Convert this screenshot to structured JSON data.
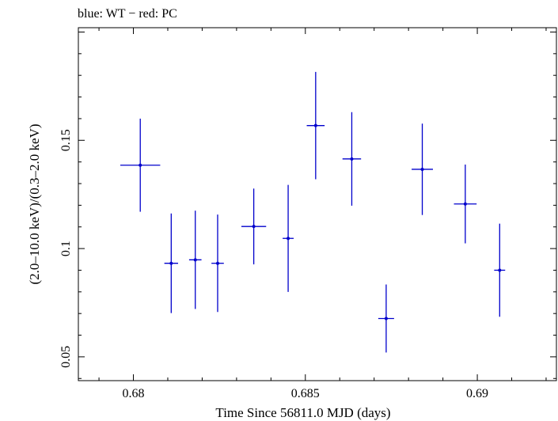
{
  "chart_data": {
    "type": "scatter",
    "title": "blue: WT − red: PC",
    "xlabel": "Time Since 56811.0 MJD (days)",
    "ylabel": "(2.0–10.0 keV)/(0.3–2.0 keV)",
    "xlim": [
      0.6784,
      0.6923
    ],
    "ylim": [
      0.039,
      0.202
    ],
    "x_ticks": [
      {
        "value": 0.68,
        "label": "0.68"
      },
      {
        "value": 0.685,
        "label": "0.685"
      },
      {
        "value": 0.69,
        "label": "0.69"
      }
    ],
    "y_ticks": [
      {
        "value": 0.05,
        "label": "0.05"
      },
      {
        "value": 0.1,
        "label": "0.1"
      },
      {
        "value": 0.15,
        "label": "0.15"
      }
    ],
    "series": [
      {
        "name": "WT",
        "color": "#0000cc",
        "points": [
          {
            "x": 0.6802,
            "xerr": 0.00058,
            "y": 0.1385,
            "yerr_lo": 0.0215,
            "yerr_hi": 0.0215
          },
          {
            "x": 0.6811,
            "xerr": 0.0002,
            "y": 0.0932,
            "yerr_lo": 0.023,
            "yerr_hi": 0.023
          },
          {
            "x": 0.6818,
            "xerr": 0.00018,
            "y": 0.0948,
            "yerr_lo": 0.0227,
            "yerr_hi": 0.0227
          },
          {
            "x": 0.68245,
            "xerr": 0.00018,
            "y": 0.0932,
            "yerr_lo": 0.0225,
            "yerr_hi": 0.0225
          },
          {
            "x": 0.6835,
            "xerr": 0.00036,
            "y": 0.1102,
            "yerr_lo": 0.0175,
            "yerr_hi": 0.0175
          },
          {
            "x": 0.6845,
            "xerr": 0.00016,
            "y": 0.1047,
            "yerr_lo": 0.0247,
            "yerr_hi": 0.0247
          },
          {
            "x": 0.6853,
            "xerr": 0.00026,
            "y": 0.1568,
            "yerr_lo": 0.0248,
            "yerr_hi": 0.0248
          },
          {
            "x": 0.68635,
            "xerr": 0.00027,
            "y": 0.1414,
            "yerr_lo": 0.0216,
            "yerr_hi": 0.0216
          },
          {
            "x": 0.68735,
            "xerr": 0.00023,
            "y": 0.0677,
            "yerr_lo": 0.0157,
            "yerr_hi": 0.0157
          },
          {
            "x": 0.6884,
            "xerr": 0.00031,
            "y": 0.1366,
            "yerr_lo": 0.0211,
            "yerr_hi": 0.0211
          },
          {
            "x": 0.68965,
            "xerr": 0.00033,
            "y": 0.1206,
            "yerr_lo": 0.0182,
            "yerr_hi": 0.0182
          },
          {
            "x": 0.69065,
            "xerr": 0.00016,
            "y": 0.09,
            "yerr_lo": 0.0215,
            "yerr_hi": 0.0215
          }
        ]
      }
    ],
    "grid": false,
    "legend": "none"
  }
}
